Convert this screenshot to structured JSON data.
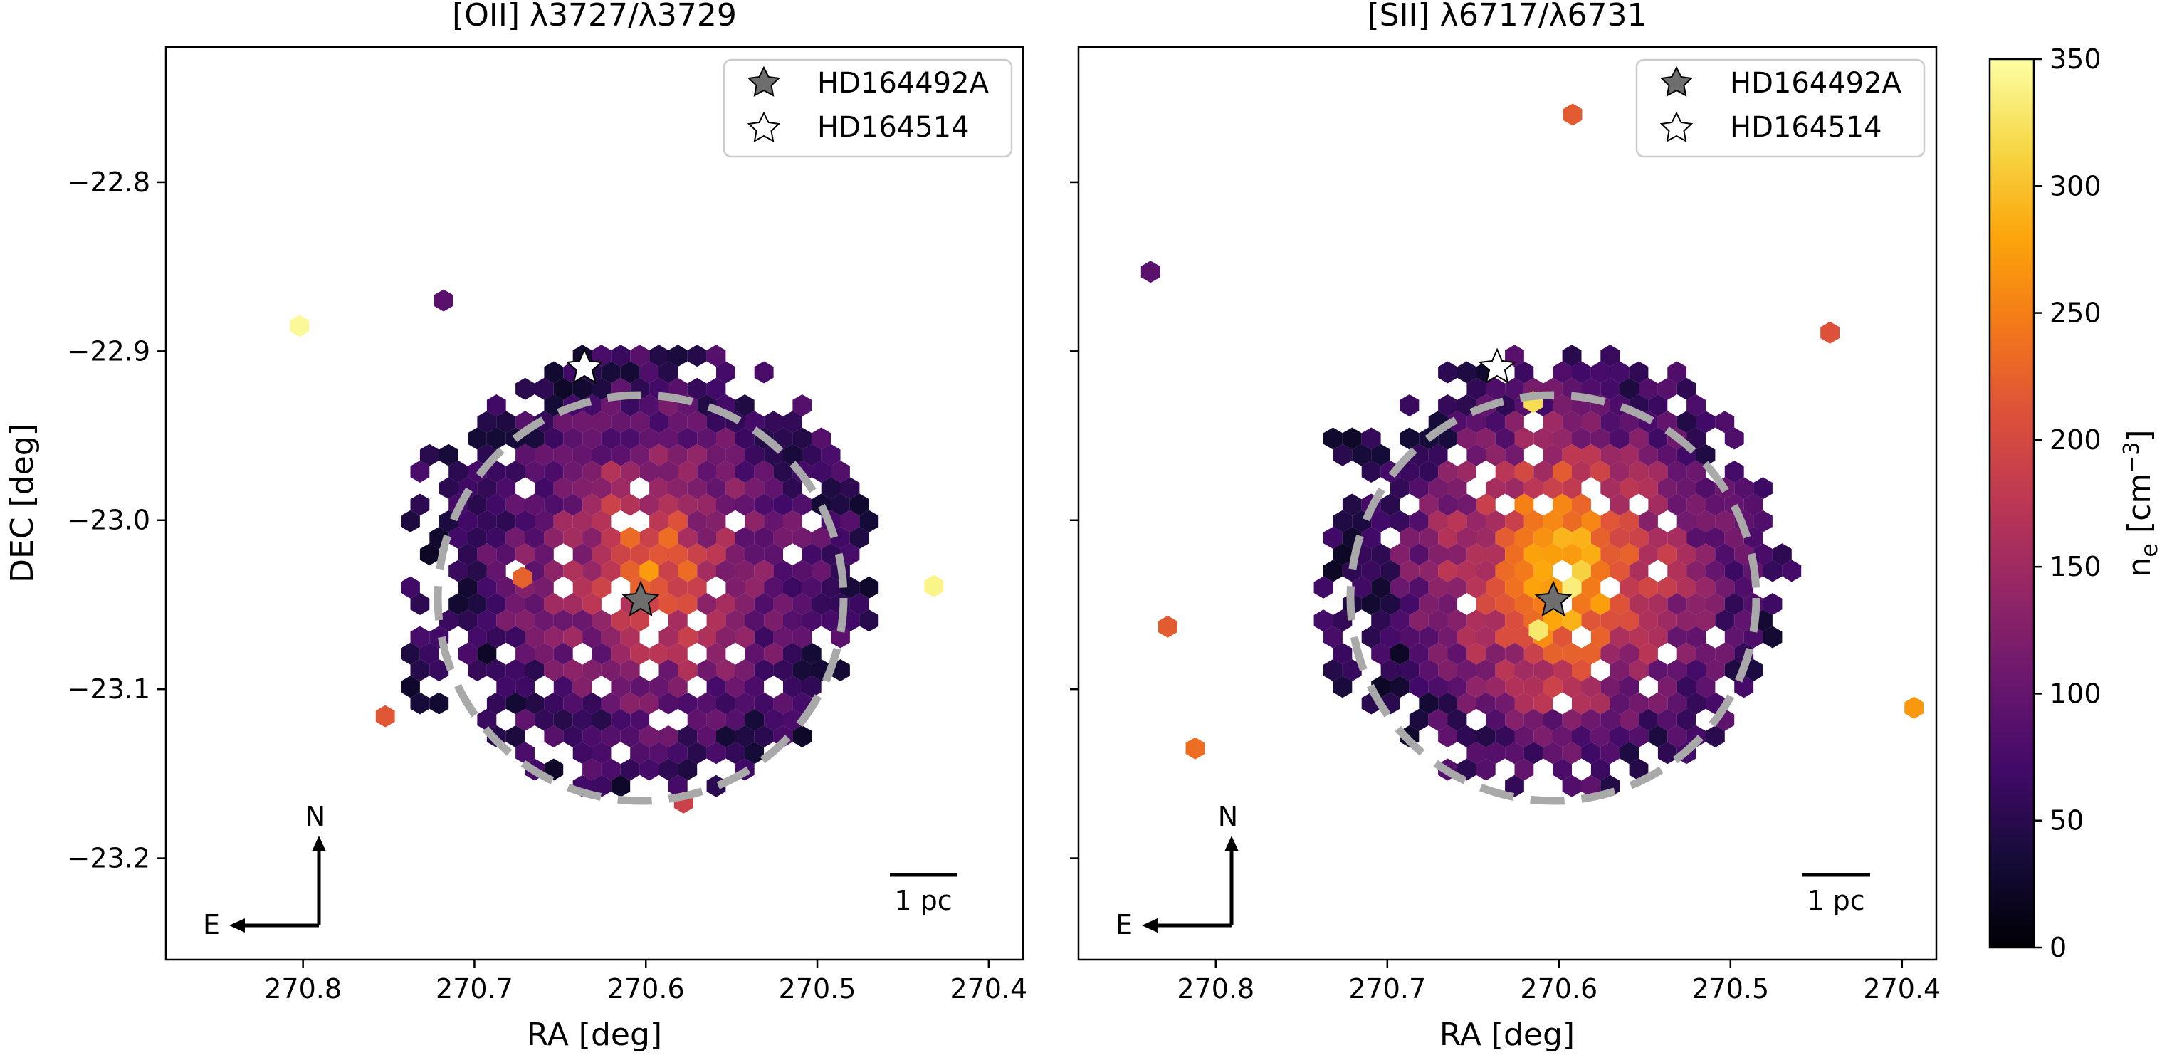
{
  "colors": {
    "star_primary": "#6e6e6e",
    "star_secondary": "#ffffff",
    "circle": "#a9a9a9",
    "frame": "#000000"
  },
  "colorbar": {
    "label": "n_e [cm^-3]",
    "colormap": "inferno",
    "range": [
      0,
      350
    ],
    "ticks": [
      "0",
      "50",
      "100",
      "150",
      "200",
      "250",
      "300",
      "350"
    ]
  },
  "chart_data": [
    {
      "type": "heatmap",
      "subtype": "hexbin",
      "title": "[OII] λ3727/λ3729",
      "xlabel": "RA [deg]",
      "ylabel": "DEC [deg]",
      "xlim": [
        270.88,
        270.38
      ],
      "ylim": [
        -23.26,
        -22.72
      ],
      "x_ticks": [
        "270.8",
        "270.7",
        "270.6",
        "270.5",
        "270.4"
      ],
      "y_ticks": [
        "−22.8",
        "−22.9",
        "−23.0",
        "−23.1",
        "−23.2"
      ],
      "stars": [
        {
          "name": "HD164492A",
          "ra": 270.598,
          "dec": -23.03,
          "style": "filled"
        },
        {
          "name": "HD164514",
          "ra": 270.632,
          "dec": -22.906,
          "style": "open"
        }
      ],
      "circle": {
        "center_ra": 270.598,
        "center_dec": -23.03,
        "radius_deg": 0.12,
        "style": "dashed"
      },
      "scale_bar": "1 pc",
      "compass": {
        "north": "N",
        "east": "E"
      },
      "peak_density": 210,
      "mean_density": 110,
      "outliers": [
        {
          "ra": 270.802,
          "dec": -22.885,
          "ne": 345
        },
        {
          "ra": 270.432,
          "dec": -23.039,
          "ne": 340
        },
        {
          "ra": 270.752,
          "dec": -23.116,
          "ne": 215
        },
        {
          "ra": 270.672,
          "dec": -23.034,
          "ne": 225
        },
        {
          "ra": 270.718,
          "dec": -22.87,
          "ne": 90
        },
        {
          "ra": 270.578,
          "dec": -23.167,
          "ne": 190
        }
      ]
    },
    {
      "type": "heatmap",
      "subtype": "hexbin",
      "title": "[SII] λ6717/λ6731",
      "xlabel": "RA [deg]",
      "ylabel": "",
      "xlim": [
        270.88,
        270.38
      ],
      "ylim": [
        -23.26,
        -22.72
      ],
      "x_ticks": [
        "270.8",
        "270.7",
        "270.6",
        "270.5",
        "270.4"
      ],
      "y_ticks": [],
      "stars": [
        {
          "name": "HD164492A",
          "ra": 270.598,
          "dec": -23.03,
          "style": "filled"
        },
        {
          "name": "HD164514",
          "ra": 270.632,
          "dec": -22.906,
          "style": "open"
        }
      ],
      "circle": {
        "center_ra": 270.598,
        "center_dec": -23.03,
        "radius_deg": 0.12,
        "style": "dashed"
      },
      "scale_bar": "1 pc",
      "compass": {
        "north": "N",
        "east": "E"
      },
      "peak_density": 290,
      "mean_density": 120,
      "outliers": [
        {
          "ra": 270.592,
          "dec": -22.76,
          "ne": 220
        },
        {
          "ra": 270.442,
          "dec": -22.889,
          "ne": 210
        },
        {
          "ra": 270.393,
          "dec": -23.111,
          "ne": 270
        },
        {
          "ra": 270.828,
          "dec": -23.063,
          "ne": 220
        },
        {
          "ra": 270.812,
          "dec": -23.135,
          "ne": 235
        },
        {
          "ra": 270.838,
          "dec": -22.853,
          "ne": 90
        },
        {
          "ra": 270.615,
          "dec": -22.93,
          "ne": 320
        },
        {
          "ra": 270.612,
          "dec": -23.065,
          "ne": 330
        }
      ]
    }
  ]
}
